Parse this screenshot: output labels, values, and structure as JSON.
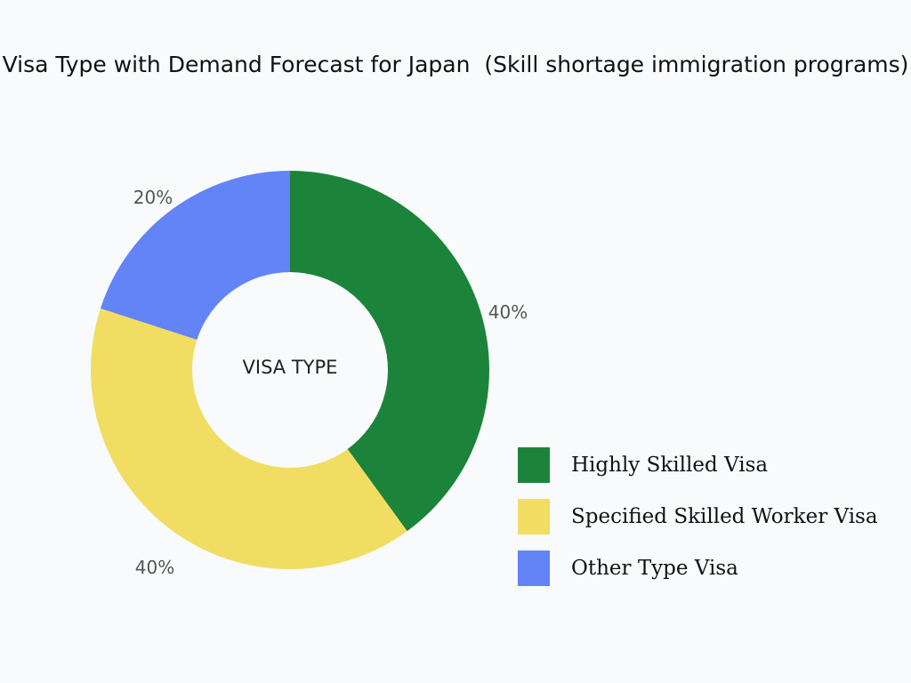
{
  "title": "Visa Type with Demand Forecast for Japan  (Skill shortage immigration programs)",
  "chart_data": {
    "type": "pie",
    "variant": "donut",
    "title": "Visa Type with Demand Forecast for Japan  (Skill shortage immigration programs)",
    "center_label": "VISA TYPE",
    "unit": "%",
    "legend_position": "bottom-right",
    "slices": [
      {
        "name": "Highly Skilled Visa",
        "value": 40,
        "label": "40%",
        "color": "#1c843a"
      },
      {
        "name": "Specified Skilled Worker Visa",
        "value": 40,
        "label": "40%",
        "color": "#f2dd63"
      },
      {
        "name": "Other Type Visa",
        "value": 20,
        "label": "20%",
        "color": "#6284f7"
      }
    ]
  }
}
